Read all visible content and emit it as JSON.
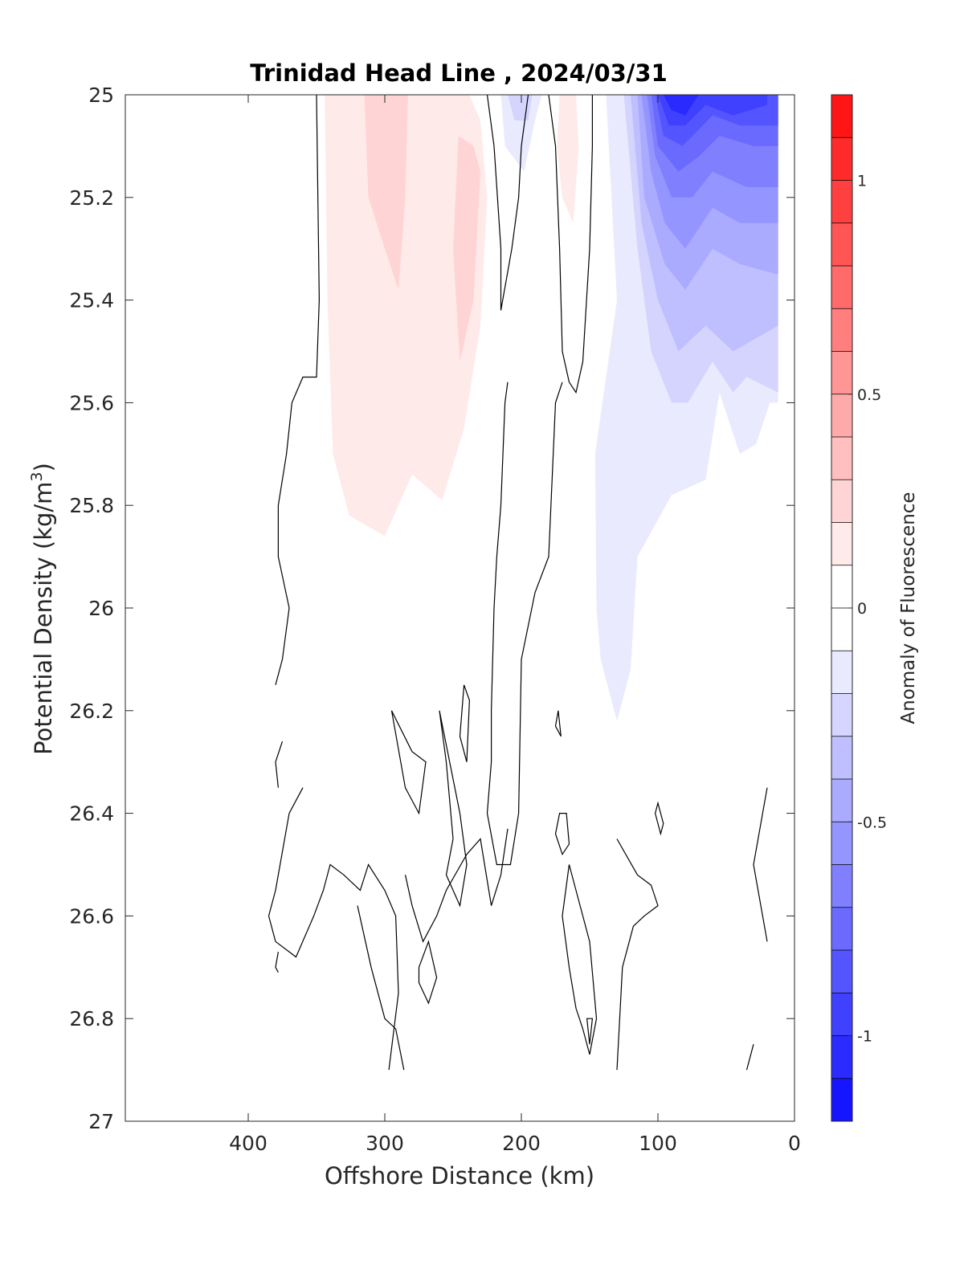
{
  "chart_data": {
    "type": "contour",
    "title": "Trinidad Head Line , 2024/03/31",
    "xlabel": "Offshore Distance (km)",
    "ylabel": "Potential Density (kg/m",
    "ylabel_sup": "3",
    "ylabel_close": ")",
    "xlim": [
      490,
      0
    ],
    "ylim": [
      25,
      27
    ],
    "x_reversed": true,
    "y_reversed": true,
    "x_ticks": [
      400,
      300,
      200,
      100,
      0
    ],
    "x_tick_labels": [
      "400",
      "300",
      "200",
      "100",
      "0"
    ],
    "y_ticks": [
      25,
      25.2,
      25.4,
      25.6,
      25.8,
      26,
      26.2,
      26.4,
      26.6,
      26.8,
      27
    ],
    "y_tick_labels": [
      "25",
      "25.2",
      "25.4",
      "25.6",
      "25.8",
      "26",
      "26.2",
      "26.4",
      "26.6",
      "26.8",
      "27"
    ],
    "grid": false,
    "colorbar": {
      "label": "Anomaly of Fluorescence",
      "range": [
        -1.2,
        1.2
      ],
      "step": 0.1,
      "ticks": [
        1,
        0.5,
        0,
        -0.5,
        -1
      ],
      "tick_labels": [
        "1",
        "0.5",
        "0",
        "-0.5",
        "-1"
      ],
      "colormap": "blue-white-red"
    },
    "filled_regions": [
      {
        "level": 0.1,
        "points": [
          [
            344,
            25
          ],
          [
            342,
            25.4
          ],
          [
            338,
            25.7
          ],
          [
            326,
            25.82
          ],
          [
            300,
            25.86
          ],
          [
            280,
            25.74
          ],
          [
            258,
            25.79
          ],
          [
            242,
            25.65
          ],
          [
            230,
            25.45
          ],
          [
            225,
            25.2
          ],
          [
            230,
            25.05
          ],
          [
            238,
            25
          ]
        ]
      },
      {
        "level": 0.2,
        "points": [
          [
            315,
            25
          ],
          [
            312,
            25.2
          ],
          [
            300,
            25.3
          ],
          [
            290,
            25.38
          ],
          [
            285,
            25.2
          ],
          [
            283,
            25
          ]
        ]
      },
      {
        "level": 0.2,
        "points": [
          [
            246,
            25.08
          ],
          [
            250,
            25.3
          ],
          [
            245,
            25.52
          ],
          [
            235,
            25.4
          ],
          [
            230,
            25.15
          ],
          [
            235,
            25.1
          ]
        ]
      },
      {
        "level": 0.1,
        "points": [
          [
            172,
            25
          ],
          [
            174,
            25.1
          ],
          [
            170,
            25.2
          ],
          [
            162,
            25.25
          ],
          [
            158,
            25.1
          ],
          [
            160,
            25
          ]
        ]
      },
      {
        "level": -0.1,
        "points": [
          [
            215,
            25
          ],
          [
            212,
            25.1
          ],
          [
            198,
            25.15
          ],
          [
            190,
            25.05
          ],
          [
            185,
            25
          ]
        ]
      },
      {
        "level": -0.2,
        "points": [
          [
            210,
            25
          ],
          [
            205,
            25.05
          ],
          [
            195,
            25.05
          ],
          [
            192,
            25
          ]
        ]
      },
      {
        "level": -0.1,
        "points": [
          [
            138,
            25
          ],
          [
            130,
            25.4
          ],
          [
            146,
            25.7
          ],
          [
            145,
            26.0
          ],
          [
            142,
            26.1
          ],
          [
            130,
            26.22
          ],
          [
            120,
            26.12
          ],
          [
            115,
            25.9
          ],
          [
            90,
            25.78
          ],
          [
            65,
            25.75
          ],
          [
            55,
            25.58
          ],
          [
            40,
            25.7
          ],
          [
            28,
            25.68
          ],
          [
            18,
            25.6
          ],
          [
            12,
            25.6
          ],
          [
            12,
            25
          ]
        ]
      },
      {
        "level": -0.2,
        "points": [
          [
            125,
            25
          ],
          [
            115,
            25.3
          ],
          [
            105,
            25.5
          ],
          [
            90,
            25.6
          ],
          [
            78,
            25.6
          ],
          [
            60,
            25.52
          ],
          [
            45,
            25.58
          ],
          [
            35,
            25.55
          ],
          [
            12,
            25.58
          ],
          [
            12,
            25
          ]
        ]
      },
      {
        "level": -0.3,
        "points": [
          [
            120,
            25
          ],
          [
            112,
            25.25
          ],
          [
            100,
            25.4
          ],
          [
            85,
            25.5
          ],
          [
            65,
            25.45
          ],
          [
            45,
            25.5
          ],
          [
            12,
            25.45
          ],
          [
            12,
            25
          ]
        ]
      },
      {
        "level": -0.4,
        "points": [
          [
            115,
            25
          ],
          [
            110,
            25.2
          ],
          [
            95,
            25.33
          ],
          [
            80,
            25.38
          ],
          [
            60,
            25.3
          ],
          [
            40,
            25.33
          ],
          [
            12,
            25.35
          ],
          [
            12,
            25
          ]
        ]
      },
      {
        "level": -0.5,
        "points": [
          [
            112,
            25
          ],
          [
            105,
            25.15
          ],
          [
            95,
            25.25
          ],
          [
            80,
            25.3
          ],
          [
            60,
            25.22
          ],
          [
            40,
            25.25
          ],
          [
            12,
            25.25
          ],
          [
            12,
            25
          ]
        ]
      },
      {
        "level": -0.6,
        "points": [
          [
            108,
            25
          ],
          [
            102,
            25.12
          ],
          [
            90,
            25.2
          ],
          [
            75,
            25.2
          ],
          [
            60,
            25.15
          ],
          [
            35,
            25.18
          ],
          [
            12,
            25.18
          ],
          [
            12,
            25
          ]
        ]
      },
      {
        "level": -0.7,
        "points": [
          [
            105,
            25
          ],
          [
            100,
            25.1
          ],
          [
            85,
            25.15
          ],
          [
            70,
            25.12
          ],
          [
            55,
            25.08
          ],
          [
            30,
            25.1
          ],
          [
            12,
            25.1
          ],
          [
            12,
            25
          ]
        ]
      },
      {
        "level": -0.8,
        "points": [
          [
            102,
            25
          ],
          [
            96,
            25.08
          ],
          [
            82,
            25.1
          ],
          [
            60,
            25.04
          ],
          [
            40,
            25.06
          ],
          [
            12,
            25.06
          ],
          [
            12,
            25
          ]
        ]
      },
      {
        "level": -0.9,
        "points": [
          [
            100,
            25
          ],
          [
            92,
            25.06
          ],
          [
            80,
            25.06
          ],
          [
            65,
            25.02
          ],
          [
            45,
            25.04
          ],
          [
            20,
            25.02
          ],
          [
            20,
            25
          ]
        ]
      },
      {
        "level": -1.0,
        "points": [
          [
            96,
            25
          ],
          [
            90,
            25.03
          ],
          [
            80,
            25.04
          ],
          [
            70,
            25
          ]
        ]
      }
    ],
    "zero_contours": [
      [
        [
          350,
          25
        ],
        [
          348,
          25.4
        ],
        [
          350,
          25.55
        ],
        [
          360,
          25.55
        ],
        [
          368,
          25.6
        ],
        [
          372,
          25.7
        ],
        [
          378,
          25.8
        ],
        [
          378,
          25.9
        ],
        [
          370,
          26
        ],
        [
          375,
          26.1
        ],
        [
          380,
          26.15
        ]
      ],
      [
        [
          375,
          26.26
        ],
        [
          380,
          26.3
        ],
        [
          378,
          26.35
        ]
      ],
      [
        [
          378,
          26.67
        ],
        [
          380,
          26.7
        ],
        [
          378,
          26.71
        ]
      ],
      [
        [
          225,
          25
        ],
        [
          220,
          25.1
        ],
        [
          215,
          25.3
        ],
        [
          215,
          25.42
        ],
        [
          207,
          25.3
        ],
        [
          202,
          25.2
        ],
        [
          200,
          25.1
        ],
        [
          195,
          25
        ]
      ],
      [
        [
          180,
          25
        ],
        [
          175,
          25.1
        ],
        [
          172,
          25.3
        ],
        [
          170,
          25.5
        ],
        [
          165,
          25.56
        ],
        [
          160,
          25.58
        ],
        [
          155,
          25.52
        ],
        [
          150,
          25.3
        ],
        [
          148,
          25.1
        ],
        [
          148,
          25
        ]
      ],
      [
        [
          170,
          25.56
        ],
        [
          175,
          25.6
        ],
        [
          180,
          25.9
        ],
        [
          190,
          25.97
        ],
        [
          200,
          26.1
        ],
        [
          202,
          26.4
        ],
        [
          208,
          26.5
        ],
        [
          218,
          26.5
        ],
        [
          225,
          26.4
        ],
        [
          222,
          26.3
        ],
        [
          222,
          26.2
        ],
        [
          220,
          26.0
        ],
        [
          218,
          25.9
        ],
        [
          215,
          25.8
        ],
        [
          212,
          25.6
        ],
        [
          210,
          25.56
        ]
      ]
    ],
    "closed_contours": [
      [
        [
          280,
          26.28
        ],
        [
          295,
          26.2
        ],
        [
          285,
          26.35
        ],
        [
          275,
          26.4
        ],
        [
          270,
          26.3
        ]
      ],
      [
        [
          250,
          26.45
        ],
        [
          255,
          26.3
        ],
        [
          260,
          26.2
        ],
        [
          245,
          26.4
        ],
        [
          240,
          26.5
        ],
        [
          245,
          26.58
        ],
        [
          255,
          26.52
        ]
      ],
      [
        [
          245,
          26.25
        ],
        [
          240,
          26.3
        ],
        [
          238,
          26.18
        ],
        [
          242,
          26.15
        ]
      ],
      [
        [
          175,
          26.23
        ],
        [
          173,
          26.2
        ],
        [
          171,
          26.25
        ]
      ],
      [
        [
          172,
          26.4
        ],
        [
          167,
          26.4
        ],
        [
          165,
          26.46
        ],
        [
          170,
          26.48
        ],
        [
          175,
          26.44
        ]
      ],
      [
        [
          100,
          26.38
        ],
        [
          96,
          26.42
        ],
        [
          98,
          26.44
        ],
        [
          102,
          26.4
        ]
      ],
      [
        [
          160,
          26.55
        ],
        [
          155,
          26.6
        ],
        [
          150,
          26.65
        ],
        [
          145,
          26.8
        ],
        [
          150,
          26.87
        ],
        [
          155,
          26.82
        ],
        [
          160,
          26.78
        ],
        [
          165,
          26.7
        ],
        [
          170,
          26.6
        ],
        [
          165,
          26.5
        ]
      ],
      [
        [
          152,
          26.8
        ],
        [
          150,
          26.85
        ],
        [
          148,
          26.8
        ]
      ],
      [
        [
          275,
          26.7
        ],
        [
          268,
          26.65
        ],
        [
          262,
          26.72
        ],
        [
          268,
          26.77
        ],
        [
          275,
          26.73
        ]
      ]
    ],
    "open_contours": [
      [
        [
          360,
          26.35
        ],
        [
          370,
          26.4
        ],
        [
          380,
          26.55
        ],
        [
          385,
          26.6
        ],
        [
          380,
          26.65
        ],
        [
          365,
          26.68
        ],
        [
          352,
          26.6
        ],
        [
          345,
          26.55
        ],
        [
          340,
          26.5
        ],
        [
          330,
          26.52
        ],
        [
          318,
          26.55
        ],
        [
          312,
          26.5
        ],
        [
          300,
          26.55
        ],
        [
          292,
          26.6
        ],
        [
          290,
          26.75
        ],
        [
          297,
          26.9
        ]
      ],
      [
        [
          320,
          26.58
        ],
        [
          310,
          26.7
        ],
        [
          300,
          26.8
        ],
        [
          292,
          26.82
        ],
        [
          286,
          26.9
        ]
      ],
      [
        [
          210,
          26.43
        ],
        [
          215,
          26.52
        ],
        [
          222,
          26.58
        ],
        [
          230,
          26.45
        ],
        [
          240,
          26.48
        ],
        [
          255,
          26.55
        ],
        [
          262,
          26.6
        ],
        [
          272,
          26.65
        ],
        [
          280,
          26.58
        ],
        [
          285,
          26.52
        ]
      ],
      [
        [
          130,
          26.45
        ],
        [
          115,
          26.52
        ],
        [
          105,
          26.54
        ],
        [
          100,
          26.58
        ],
        [
          110,
          26.6
        ],
        [
          118,
          26.62
        ],
        [
          126,
          26.7
        ],
        [
          130,
          26.9
        ]
      ],
      [
        [
          20,
          26.35
        ],
        [
          30,
          26.5
        ],
        [
          20,
          26.65
        ]
      ],
      [
        [
          30,
          26.85
        ],
        [
          35,
          26.9
        ]
      ]
    ]
  }
}
